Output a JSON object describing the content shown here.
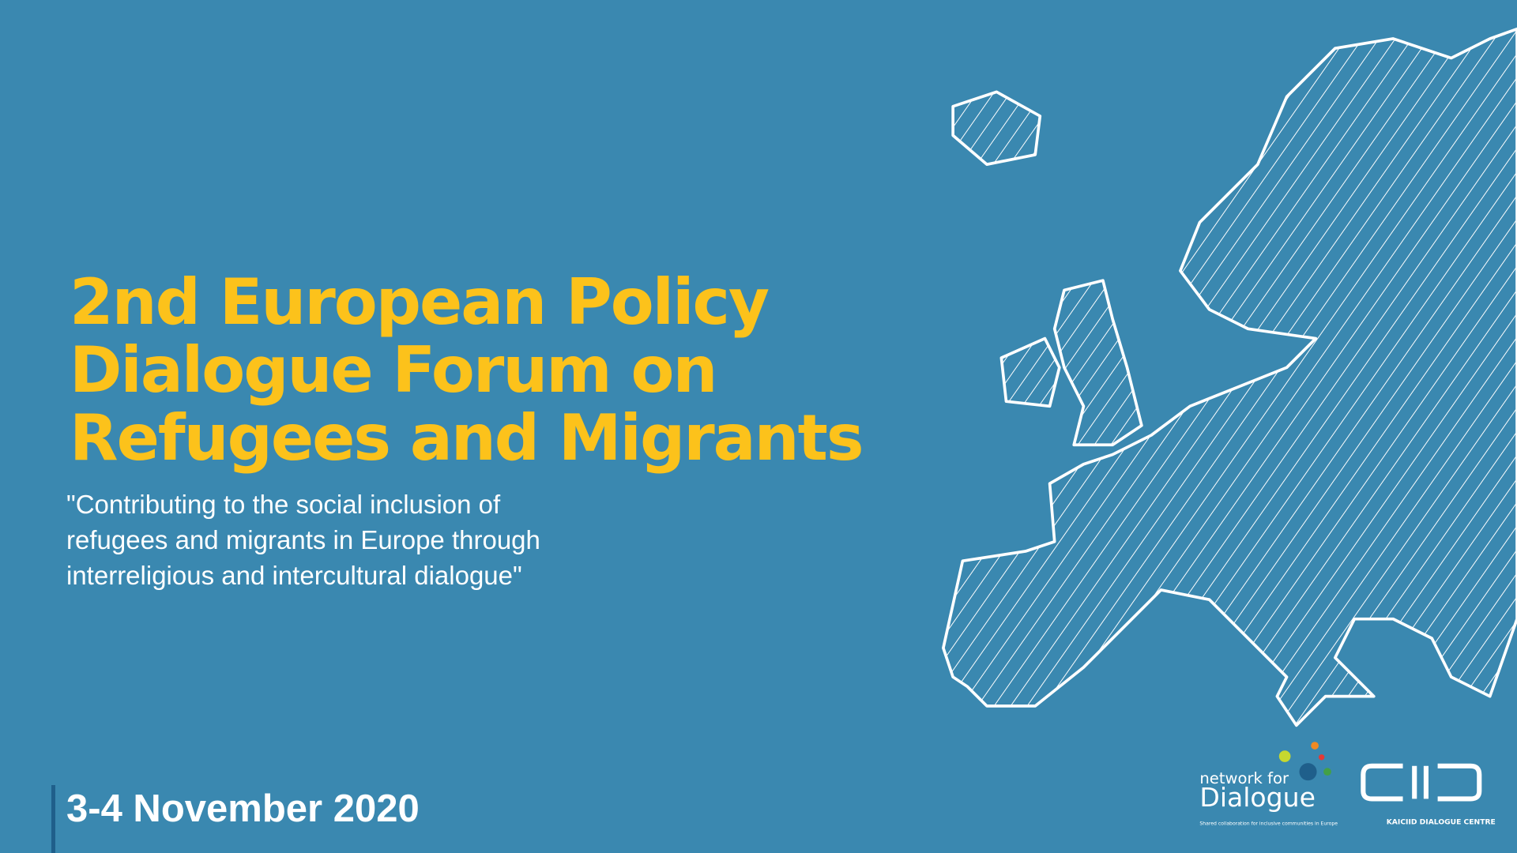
{
  "title": {
    "lines": [
      "2nd European Policy",
      "Dialogue Forum on",
      "Refugees and Migrants"
    ]
  },
  "subtitle": {
    "lines": [
      "\"Contributing to the social inclusion of",
      "refugees and migrants in Europe through",
      "interreligious and intercultural dialogue\""
    ]
  },
  "date": "3-4 November 2020",
  "logos": {
    "network": {
      "line1": "network for",
      "line2": "Dialogue",
      "tagline": "Shared collaboration for inclusive communities in Europe"
    },
    "kaiciid": {
      "caption": "KAICIID DIALOGUE CENTRE"
    }
  }
}
